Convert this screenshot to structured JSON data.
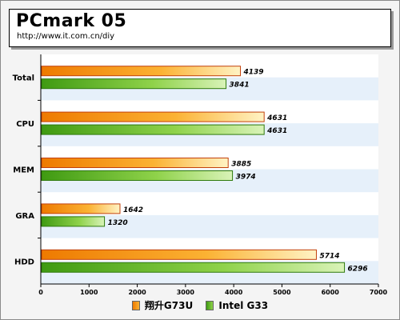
{
  "title": "PCmark 05",
  "subtitle": "http://www.it.com.cn/diy",
  "colors": {
    "series1": "#f5a623",
    "series2": "#6fc22a",
    "band": "#e6f0fa"
  },
  "chart_data": {
    "type": "bar",
    "orientation": "horizontal",
    "categories": [
      "Total",
      "CPU",
      "MEM",
      "GRA",
      "HDD"
    ],
    "series": [
      {
        "name": "翔升G73U",
        "values": [
          4139,
          4631,
          3885,
          1642,
          5714
        ]
      },
      {
        "name": "Intel G33",
        "values": [
          3841,
          4631,
          3974,
          1320,
          6296
        ]
      }
    ],
    "xlim": [
      0,
      7000
    ],
    "xticks": [
      0,
      1000,
      2000,
      3000,
      4000,
      5000,
      6000,
      7000
    ],
    "legend": "bottom",
    "grid": false
  }
}
